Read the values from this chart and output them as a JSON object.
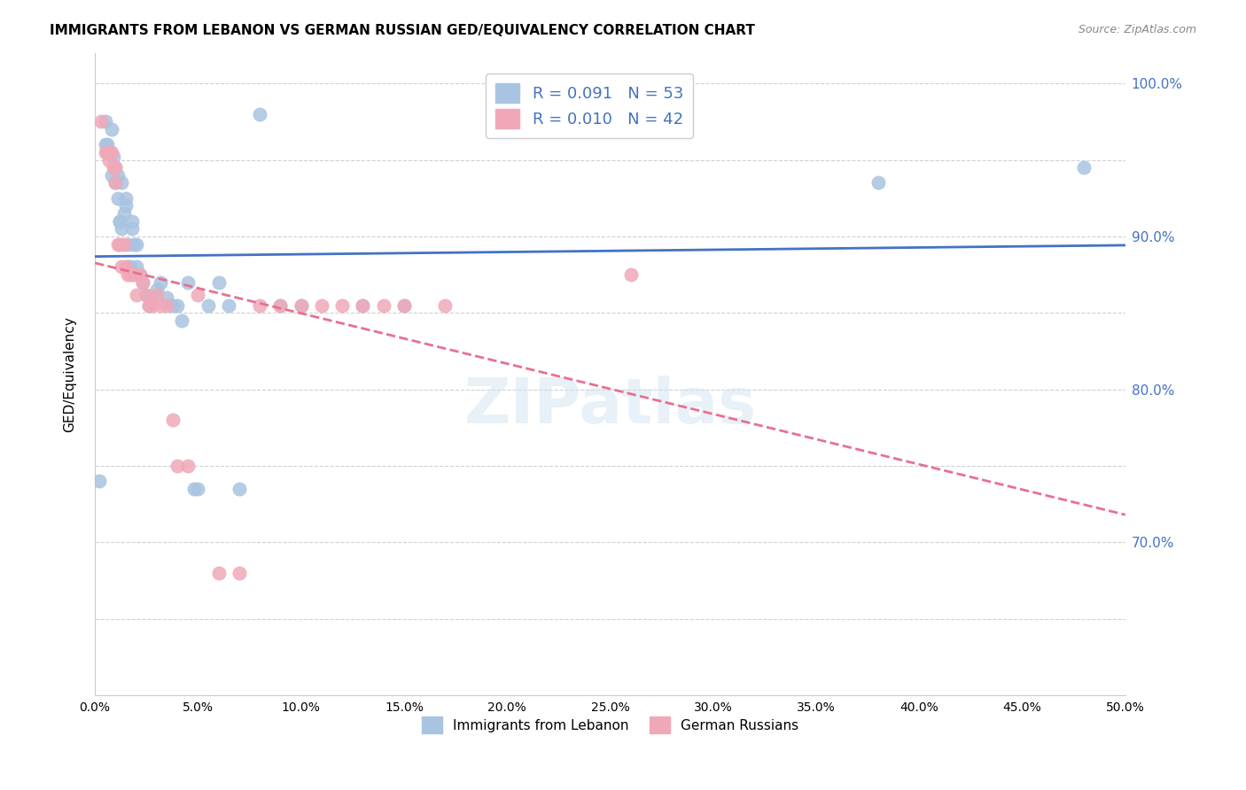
{
  "title": "IMMIGRANTS FROM LEBANON VS GERMAN RUSSIAN GED/EQUIVALENCY CORRELATION CHART",
  "source": "Source: ZipAtlas.com",
  "xlabel": "",
  "ylabel": "GED/Equivalency",
  "legend_label1": "Immigrants from Lebanon",
  "legend_label2": "German Russians",
  "R1": 0.091,
  "N1": 53,
  "R2": 0.01,
  "N2": 42,
  "xlim": [
    0.0,
    0.5
  ],
  "ylim": [
    0.6,
    1.02
  ],
  "xticks": [
    0.0,
    0.05,
    0.1,
    0.15,
    0.2,
    0.25,
    0.3,
    0.35,
    0.4,
    0.45,
    0.5
  ],
  "yticks": [
    0.6,
    0.65,
    0.7,
    0.75,
    0.8,
    0.85,
    0.9,
    0.95,
    1.0
  ],
  "color_blue": "#a8c4e0",
  "color_pink": "#f0a8b8",
  "color_blue_line": "#4472c4",
  "color_pink_line": "#e87090",
  "background_color": "#ffffff",
  "watermark": "ZIPatlas",
  "lebanon_x": [
    0.002,
    0.005,
    0.005,
    0.006,
    0.007,
    0.008,
    0.008,
    0.009,
    0.01,
    0.01,
    0.011,
    0.011,
    0.012,
    0.012,
    0.013,
    0.013,
    0.014,
    0.015,
    0.015,
    0.016,
    0.016,
    0.017,
    0.018,
    0.018,
    0.019,
    0.02,
    0.02,
    0.021,
    0.022,
    0.023,
    0.025,
    0.026,
    0.028,
    0.03,
    0.032,
    0.035,
    0.038,
    0.04,
    0.042,
    0.045,
    0.048,
    0.05,
    0.055,
    0.06,
    0.065,
    0.07,
    0.08,
    0.09,
    0.1,
    0.13,
    0.15,
    0.38,
    0.48
  ],
  "lebanon_y": [
    0.74,
    0.975,
    0.96,
    0.96,
    0.955,
    0.97,
    0.94,
    0.952,
    0.945,
    0.935,
    0.94,
    0.925,
    0.91,
    0.91,
    0.935,
    0.905,
    0.915,
    0.92,
    0.925,
    0.88,
    0.895,
    0.88,
    0.91,
    0.905,
    0.895,
    0.895,
    0.88,
    0.875,
    0.875,
    0.87,
    0.862,
    0.855,
    0.86,
    0.865,
    0.87,
    0.86,
    0.855,
    0.855,
    0.845,
    0.87,
    0.735,
    0.735,
    0.855,
    0.87,
    0.855,
    0.735,
    0.98,
    0.855,
    0.855,
    0.855,
    0.855,
    0.935,
    0.945
  ],
  "german_x": [
    0.003,
    0.005,
    0.006,
    0.007,
    0.008,
    0.009,
    0.01,
    0.01,
    0.011,
    0.012,
    0.013,
    0.014,
    0.015,
    0.016,
    0.017,
    0.018,
    0.019,
    0.02,
    0.022,
    0.023,
    0.025,
    0.026,
    0.028,
    0.03,
    0.032,
    0.035,
    0.038,
    0.04,
    0.045,
    0.05,
    0.06,
    0.07,
    0.08,
    0.09,
    0.1,
    0.11,
    0.12,
    0.13,
    0.14,
    0.15,
    0.17,
    0.26
  ],
  "german_y": [
    0.975,
    0.955,
    0.955,
    0.95,
    0.955,
    0.945,
    0.945,
    0.935,
    0.895,
    0.895,
    0.88,
    0.895,
    0.88,
    0.875,
    0.875,
    0.875,
    0.875,
    0.862,
    0.875,
    0.87,
    0.862,
    0.855,
    0.855,
    0.862,
    0.855,
    0.855,
    0.78,
    0.75,
    0.75,
    0.862,
    0.68,
    0.68,
    0.855,
    0.855,
    0.855,
    0.855,
    0.855,
    0.855,
    0.855,
    0.855,
    0.855,
    0.875
  ]
}
